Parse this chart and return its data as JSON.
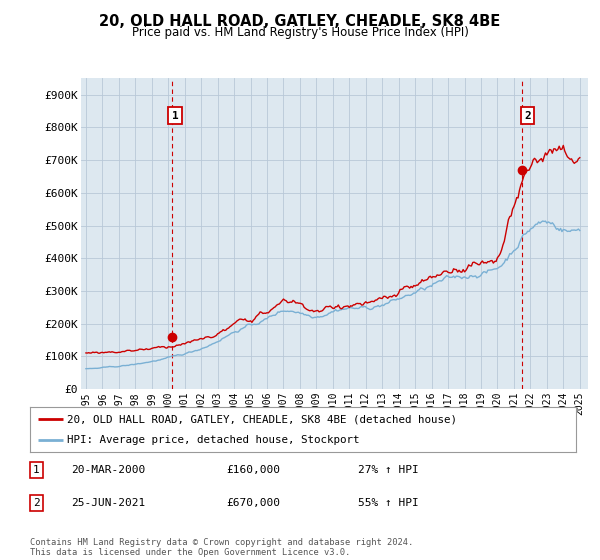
{
  "title": "20, OLD HALL ROAD, GATLEY, CHEADLE, SK8 4BE",
  "subtitle": "Price paid vs. HM Land Registry's House Price Index (HPI)",
  "legend_line1": "20, OLD HALL ROAD, GATLEY, CHEADLE, SK8 4BE (detached house)",
  "legend_line2": "HPI: Average price, detached house, Stockport",
  "annotation1_label": "1",
  "annotation1_date": "20-MAR-2000",
  "annotation1_price": "£160,000",
  "annotation1_hpi": "27% ↑ HPI",
  "annotation2_label": "2",
  "annotation2_date": "25-JUN-2021",
  "annotation2_price": "£670,000",
  "annotation2_hpi": "55% ↑ HPI",
  "footer": "Contains HM Land Registry data © Crown copyright and database right 2024.\nThis data is licensed under the Open Government Licence v3.0.",
  "hpi_color": "#7ab0d4",
  "price_color": "#cc0000",
  "annotation_color": "#cc0000",
  "chart_bg_color": "#dde8f0",
  "background_color": "#ffffff",
  "grid_color": "#b8c8d8",
  "ylim": [
    0,
    950000
  ],
  "yticks": [
    0,
    100000,
    200000,
    300000,
    400000,
    500000,
    600000,
    700000,
    800000,
    900000
  ],
  "ytick_labels": [
    "£0",
    "£100K",
    "£200K",
    "£300K",
    "£400K",
    "£500K",
    "£600K",
    "£700K",
    "£800K",
    "£900K"
  ],
  "sale1_x": 2000.22,
  "sale1_y": 160000,
  "sale2_x": 2021.48,
  "sale2_y": 670000,
  "xlim_left": 1994.7,
  "xlim_right": 2025.5
}
